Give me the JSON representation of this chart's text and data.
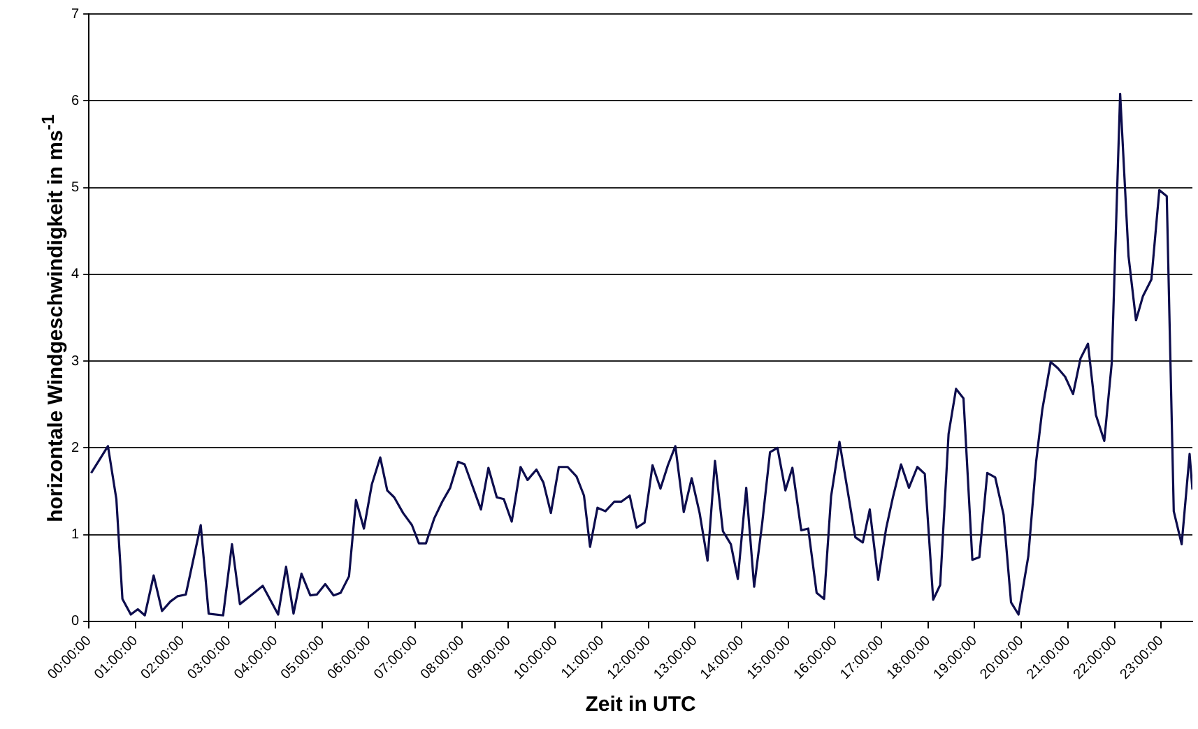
{
  "chart_data": {
    "type": "line",
    "xlabel": "Zeit in UTC",
    "ylabel": "horizontale Windgeschwindigkeit in ms$^{-1}$",
    "x": [
      0.05,
      0.41,
      0.59,
      0.72,
      0.9,
      1.05,
      1.2,
      1.39,
      1.57,
      1.75,
      1.9,
      2.08,
      2.4,
      2.57,
      2.88,
      3.07,
      3.24,
      3.5,
      3.73,
      4.06,
      4.23,
      4.39,
      4.56,
      4.75,
      4.89,
      5.07,
      5.25,
      5.4,
      5.58,
      5.73,
      5.9,
      6.07,
      6.25,
      6.4,
      6.55,
      6.74,
      6.93,
      7.08,
      7.23,
      7.41,
      7.58,
      7.75,
      7.92,
      8.06,
      8.41,
      8.57,
      8.75,
      8.9,
      9.07,
      9.26,
      9.41,
      9.6,
      9.75,
      9.91,
      10.08,
      10.27,
      10.46,
      10.62,
      10.75,
      10.91,
      11.08,
      11.27,
      11.42,
      11.6,
      11.75,
      11.92,
      12.09,
      12.26,
      12.42,
      12.58,
      12.76,
      12.93,
      13.1,
      13.27,
      13.43,
      13.6,
      13.77,
      13.92,
      14.1,
      14.27,
      14.44,
      14.61,
      14.77,
      14.94,
      15.09,
      15.28,
      15.43,
      15.61,
      15.77,
      15.92,
      16.1,
      16.28,
      16.44,
      16.6,
      16.75,
      16.93,
      17.1,
      17.25,
      17.42,
      17.59,
      17.77,
      17.93,
      18.11,
      18.26,
      18.44,
      18.6,
      18.76,
      18.95,
      19.1,
      19.27,
      19.44,
      19.62,
      19.78,
      19.94,
      20.15,
      20.32,
      20.45,
      20.63,
      20.78,
      20.94,
      21.11,
      21.27,
      21.43,
      21.6,
      21.78,
      21.94,
      22.12,
      22.3,
      22.46,
      22.61,
      22.79,
      22.96,
      23.12,
      23.27,
      23.44,
      23.61,
      23.67
    ],
    "series": [
      {
        "color": "#0d0d4d",
        "values": [
          1.71,
          2.02,
          1.41,
          0.26,
          0.08,
          0.14,
          0.07,
          0.53,
          0.12,
          0.23,
          0.29,
          0.31,
          1.11,
          0.09,
          0.07,
          0.89,
          0.2,
          0.31,
          0.41,
          0.08,
          0.63,
          0.09,
          0.55,
          0.3,
          0.31,
          0.43,
          0.3,
          0.33,
          0.52,
          1.4,
          1.07,
          1.58,
          1.89,
          1.51,
          1.43,
          1.25,
          1.11,
          0.9,
          0.9,
          1.19,
          1.38,
          1.54,
          1.84,
          1.81,
          1.29,
          1.77,
          1.43,
          1.41,
          1.15,
          1.78,
          1.63,
          1.75,
          1.6,
          1.25,
          1.78,
          1.78,
          1.67,
          1.45,
          0.86,
          1.31,
          1.27,
          1.38,
          1.38,
          1.45,
          1.08,
          1.14,
          1.8,
          1.53,
          1.8,
          2.02,
          1.26,
          1.65,
          1.25,
          0.7,
          1.85,
          1.04,
          0.89,
          0.49,
          1.54,
          0.4,
          1.12,
          1.95,
          2.0,
          1.51,
          1.77,
          1.05,
          1.07,
          0.33,
          0.26,
          1.44,
          2.07,
          1.49,
          0.97,
          0.91,
          1.29,
          0.48,
          1.07,
          1.44,
          1.81,
          1.54,
          1.78,
          1.7,
          0.25,
          0.42,
          2.16,
          2.68,
          2.57,
          0.71,
          0.74,
          1.71,
          1.66,
          1.23,
          0.22,
          0.08,
          0.75,
          1.85,
          2.44,
          2.99,
          2.92,
          2.82,
          2.62,
          3.03,
          3.2,
          2.38,
          2.08,
          2.98,
          6.08,
          4.21,
          3.47,
          3.75,
          3.94,
          4.97,
          4.9,
          1.27,
          0.89,
          1.93,
          1.52
        ]
      }
    ],
    "xlim": [
      0,
      23.67
    ],
    "xticks": [
      {
        "value": 0,
        "label": "00:00:00"
      },
      {
        "value": 1,
        "label": "01:00:00"
      },
      {
        "value": 2,
        "label": "02:00:00"
      },
      {
        "value": 3,
        "label": "03:00:00"
      },
      {
        "value": 4,
        "label": "04:00:00"
      },
      {
        "value": 5,
        "label": "05:00:00"
      },
      {
        "value": 6,
        "label": "06:00:00"
      },
      {
        "value": 7,
        "label": "07:00:00"
      },
      {
        "value": 8,
        "label": "08:00:00"
      },
      {
        "value": 9,
        "label": "09:00:00"
      },
      {
        "value": 10,
        "label": "10:00:00"
      },
      {
        "value": 11,
        "label": "11:00:00"
      },
      {
        "value": 12,
        "label": "12:00:00"
      },
      {
        "value": 13,
        "label": "13:00:00"
      },
      {
        "value": 14,
        "label": "14:00:00"
      },
      {
        "value": 15,
        "label": "15:00:00"
      },
      {
        "value": 16,
        "label": "16:00:00"
      },
      {
        "value": 17,
        "label": "17:00:00"
      },
      {
        "value": 18,
        "label": "18:00:00"
      },
      {
        "value": 19,
        "label": "19:00:00"
      },
      {
        "value": 20,
        "label": "20:00:00"
      },
      {
        "value": 21,
        "label": "21:00:00"
      },
      {
        "value": 22,
        "label": "22:00:00"
      },
      {
        "value": 23,
        "label": "23:00:00"
      }
    ],
    "ylim": [
      0,
      7
    ],
    "yticks": [
      0,
      1,
      2,
      3,
      4,
      5,
      6,
      7
    ],
    "grid": "y",
    "marker": "none",
    "line_style": "solid"
  }
}
